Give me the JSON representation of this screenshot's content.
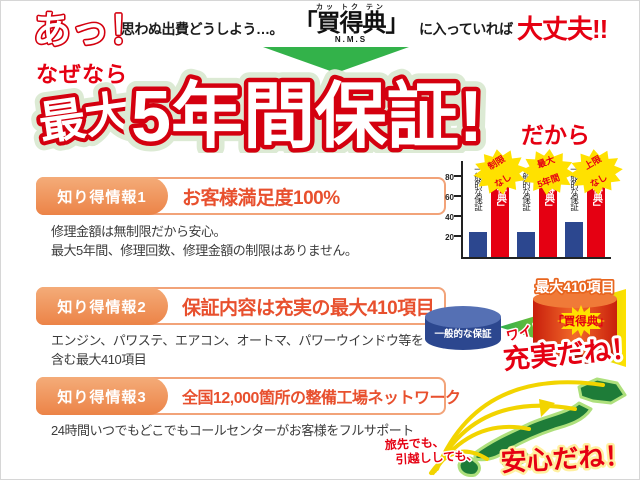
{
  "colors": {
    "red": "#e50012",
    "outline_red": "#d4000f",
    "badge_orange": "#ec8347",
    "box_border_orange": "#f2a379",
    "title_orange_red": "#e8502e",
    "body_text": "#3c3c3c",
    "bar_blue": "#2c478f",
    "bar_red": "#e50012",
    "star_yellow": "#ffe100",
    "arrow_green": "#33b24a",
    "map_green": "#1e7c38"
  },
  "header": {
    "exclaim": "あっ！",
    "lead1": "思わぬ出費どうしよう…。",
    "furigana": "カッ トク テン",
    "product": "「買得典」",
    "product_sub": "N.M.S",
    "lead2": "に入っていれば",
    "daijobu": "大丈夫!!"
  },
  "headline": {
    "prefix": "なぜなら",
    "main1": "最大",
    "main2": "5年間保証!",
    "suffix": "だから"
  },
  "sections": [
    {
      "badge": "知り得情報1",
      "title": "お客様満足度100%",
      "body1": "修理金額は無制限だから安心。",
      "body2": "最大5年間、修理回数、修理金額の制限はありません。"
    },
    {
      "badge": "知り得情報2",
      "title": "保証内容は充実の最大410項目",
      "body1": "エンジン、パワステ、エアコン、オートマ、パワーウインドウ等を",
      "body2": "含む最大410項目"
    },
    {
      "badge": "知り得情報3",
      "title": "全国12,000箇所の整備工場ネットワーク",
      "body1": "24時間いつでもどこでもコールセンターがお客様をフルサポート"
    }
  ],
  "chart_data": {
    "type": "bar",
    "title": "",
    "yticks": [
      20,
      40,
      60,
      80
    ],
    "ylim": [
      0,
      100
    ],
    "grid": false,
    "legend_position": "in-bar-vertical-labels",
    "series": [
      {
        "name": "一般的な保証",
        "color": "#2c478f",
        "values": [
          25,
          25,
          35
        ]
      },
      {
        "name": "「買得典」",
        "color": "#e50012",
        "values": [
          95,
          95,
          95
        ]
      }
    ],
    "annotations": [
      "制限なし",
      "最大5年間",
      "上限なし"
    ],
    "annotation_lines": [
      {
        "l1": "制限",
        "l2": "なし"
      },
      {
        "l1": "最大",
        "l2": "5年間"
      },
      {
        "l1": "上限",
        "l2": "なし"
      }
    ]
  },
  "wide_graphic": {
    "general_label": "一般的な保証",
    "wedge_label": "ワイド保証",
    "top_label": "最大410項目",
    "product_label": "「買得典」",
    "exclaim": "充実だね！"
  },
  "map_graphic": {
    "line1": "旅先でも、",
    "line2": "引越ししても、",
    "exclaim": "安心だね！"
  }
}
